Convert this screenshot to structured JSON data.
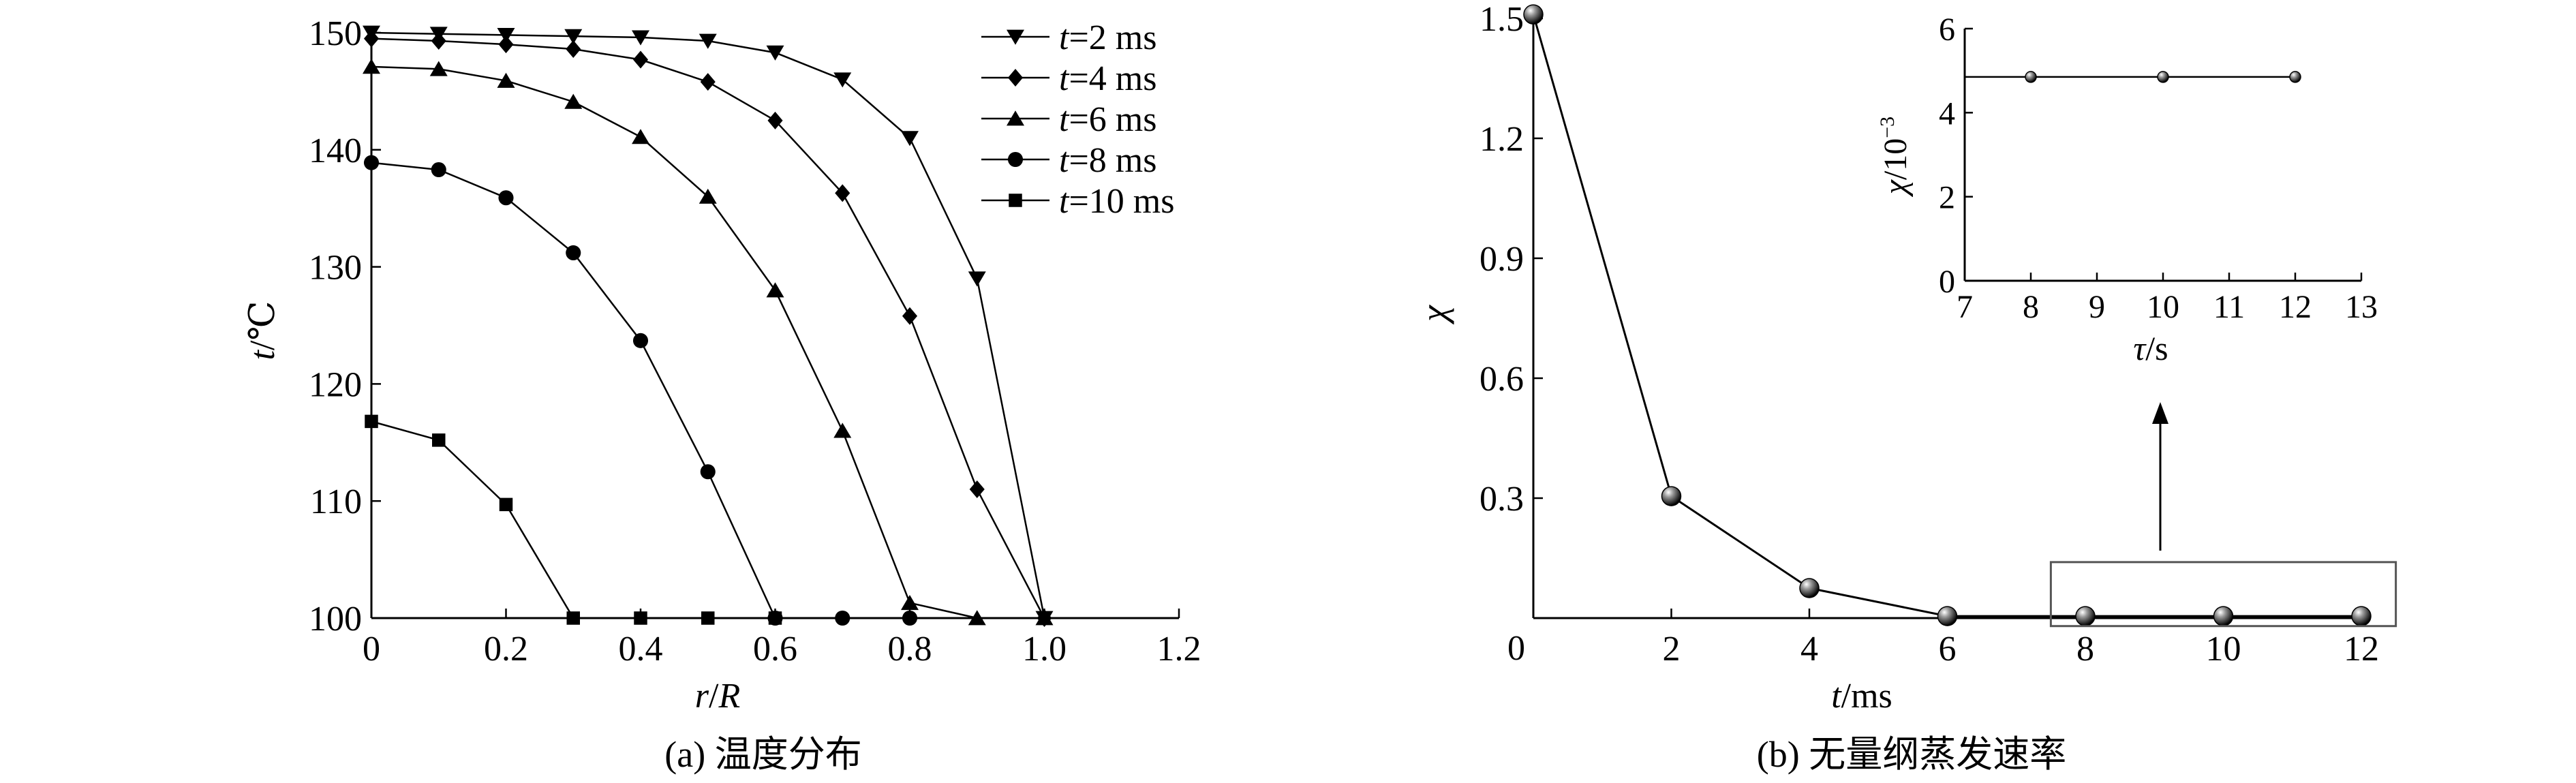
{
  "chart_data": [
    {
      "type": "line",
      "caption": "(a) 温度分布",
      "xlabel_var": "r",
      "xlabel_sep": "/",
      "xlabel_den": "R",
      "ylabel_var": "t",
      "ylabel_unit": "/℃",
      "xlim": [
        0,
        1.2
      ],
      "ylim": [
        100,
        150
      ],
      "xticks": [
        0,
        0.2,
        0.4,
        0.6,
        0.8,
        1.0,
        1.2
      ],
      "xtick_labels": [
        "0",
        "0.2",
        "0.4",
        "0.6",
        "0.8",
        "1.0",
        "1.2"
      ],
      "yticks": [
        100,
        110,
        120,
        130,
        140,
        150
      ],
      "ytick_labels": [
        "100",
        "110",
        "120",
        "130",
        "140",
        "150"
      ],
      "grid": false,
      "legend_position": "top-right",
      "series": [
        {
          "name": "=2 ms",
          "legend_var": "t",
          "marker": "triangle-down",
          "x": [
            0,
            0.1,
            0.2,
            0.3,
            0.4,
            0.5,
            0.6,
            0.7,
            0.8,
            0.9,
            1.0
          ],
          "y": [
            150,
            149.9,
            149.8,
            149.7,
            149.6,
            149.3,
            148.3,
            146,
            141,
            129,
            100
          ]
        },
        {
          "name": "=4 ms",
          "legend_var": "t",
          "marker": "diamond",
          "x": [
            0,
            0.1,
            0.2,
            0.3,
            0.4,
            0.5,
            0.6,
            0.7,
            0.8,
            0.9,
            1.0
          ],
          "y": [
            149.5,
            149.3,
            149,
            148.6,
            147.7,
            145.8,
            142.5,
            136.3,
            125.8,
            111,
            100
          ]
        },
        {
          "name": "=6 ms",
          "legend_var": "t",
          "marker": "triangle-up",
          "x": [
            0,
            0.1,
            0.2,
            0.3,
            0.4,
            0.5,
            0.6,
            0.7,
            0.8,
            0.9,
            1.0
          ],
          "y": [
            147.1,
            146.9,
            145.9,
            144.1,
            141.1,
            136,
            128,
            116,
            101.3,
            100,
            100
          ]
        },
        {
          "name": "=8 ms",
          "legend_var": "t",
          "marker": "circle",
          "x": [
            0,
            0.1,
            0.2,
            0.3,
            0.4,
            0.5,
            0.6,
            0.7,
            0.8
          ],
          "y": [
            138.9,
            138.3,
            135.9,
            131.2,
            123.7,
            112.5,
            100,
            100,
            100
          ]
        },
        {
          "name": "=10 ms",
          "legend_var": "t",
          "marker": "square",
          "x": [
            0,
            0.1,
            0.2,
            0.3,
            0.4,
            0.5,
            0.6
          ],
          "y": [
            116.8,
            115.2,
            109.7,
            100,
            100,
            100,
            100
          ]
        }
      ]
    },
    {
      "type": "line",
      "caption": "(b) 无量纲蒸发速率",
      "xlabel_var": "t",
      "xlabel_unit": "/ms",
      "ylabel": "χ",
      "xlim": [
        0,
        12
      ],
      "ylim": [
        0,
        1.5
      ],
      "xticks": [
        0,
        2,
        4,
        6,
        8,
        10,
        12
      ],
      "xtick_labels": [
        "0",
        "2",
        "4",
        "6",
        "8",
        "10",
        "12"
      ],
      "yticks": [
        0.3,
        0.6,
        0.9,
        1.2,
        1.5
      ],
      "ytick_labels": [
        "0.3",
        "0.6",
        "0.9",
        "1.2",
        "1.5"
      ],
      "grid": false,
      "series": [
        {
          "marker": "sphere",
          "x": [
            0,
            2,
            4,
            6,
            8,
            10,
            12
          ],
          "y": [
            1.51,
            0.305,
            0.075,
            0.0049,
            0.0048,
            0.0048,
            0.0048
          ]
        }
      ],
      "highlight_box_x": [
        7.5,
        12.5
      ],
      "highlight_box_y": [
        -0.02,
        0.14
      ],
      "inset": {
        "type": "line",
        "xlabel_var": "τ",
        "xlabel_unit": "/s",
        "ylabel_var": "χ",
        "ylabel_unit": "/10",
        "ylabel_exp": "−3",
        "xlim": [
          7,
          13
        ],
        "ylim": [
          0,
          6
        ],
        "xticks": [
          7,
          8,
          9,
          10,
          11,
          12,
          13
        ],
        "xtick_labels": [
          "7",
          "8",
          "9",
          "10",
          "11",
          "12",
          "13"
        ],
        "yticks": [
          0,
          2,
          4,
          6
        ],
        "ytick_labels": [
          "0",
          "2",
          "4",
          "6"
        ],
        "series": [
          {
            "marker": "sphere",
            "x": [
              7,
              8,
              10,
              12
            ],
            "y": [
              4.85,
              4.85,
              4.85,
              4.85
            ]
          }
        ]
      }
    }
  ]
}
